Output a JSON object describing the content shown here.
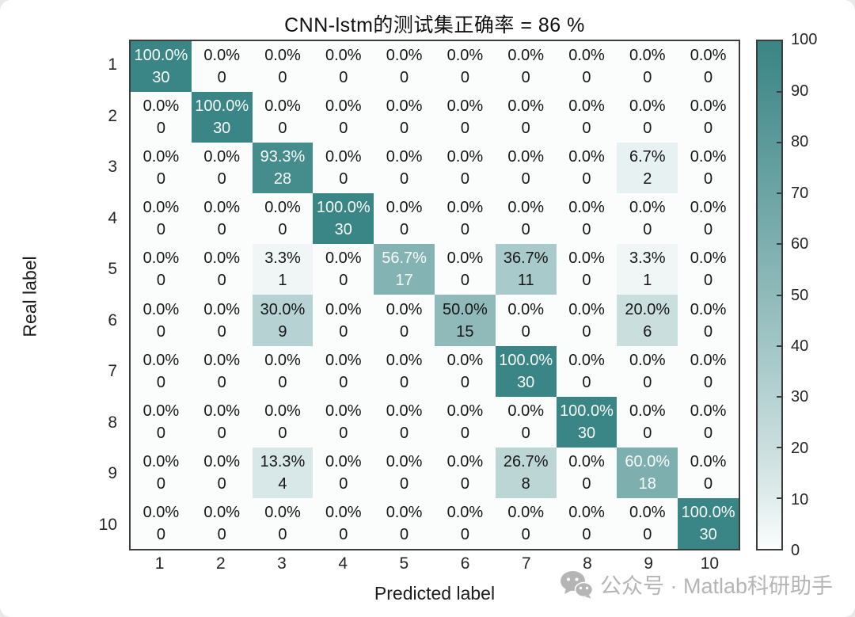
{
  "chart_data": {
    "type": "heatmap",
    "title": "CNN-lstm的测试集正确率 = 86 %",
    "accuracy_percent": 86,
    "xlabel": "Predicted label",
    "ylabel": "Real label",
    "x_tick_labels": [
      "1",
      "2",
      "3",
      "4",
      "5",
      "6",
      "7",
      "8",
      "9",
      "10"
    ],
    "y_tick_labels": [
      "1",
      "2",
      "3",
      "4",
      "5",
      "6",
      "7",
      "8",
      "9",
      "10"
    ],
    "row_total": 30,
    "grid": false,
    "legend_position": "right",
    "counts": [
      [
        30,
        0,
        0,
        0,
        0,
        0,
        0,
        0,
        0,
        0
      ],
      [
        0,
        30,
        0,
        0,
        0,
        0,
        0,
        0,
        0,
        0
      ],
      [
        0,
        0,
        28,
        0,
        0,
        0,
        0,
        0,
        2,
        0
      ],
      [
        0,
        0,
        0,
        30,
        0,
        0,
        0,
        0,
        0,
        0
      ],
      [
        0,
        0,
        1,
        0,
        17,
        0,
        11,
        0,
        1,
        0
      ],
      [
        0,
        0,
        9,
        0,
        0,
        15,
        0,
        0,
        6,
        0
      ],
      [
        0,
        0,
        0,
        0,
        0,
        0,
        30,
        0,
        0,
        0
      ],
      [
        0,
        0,
        0,
        0,
        0,
        0,
        0,
        30,
        0,
        0
      ],
      [
        0,
        0,
        4,
        0,
        0,
        0,
        8,
        0,
        18,
        0
      ],
      [
        0,
        0,
        0,
        0,
        0,
        0,
        0,
        0,
        0,
        30
      ]
    ],
    "percent_labels": [
      [
        "100.0%",
        "0.0%",
        "0.0%",
        "0.0%",
        "0.0%",
        "0.0%",
        "0.0%",
        "0.0%",
        "0.0%",
        "0.0%"
      ],
      [
        "0.0%",
        "100.0%",
        "0.0%",
        "0.0%",
        "0.0%",
        "0.0%",
        "0.0%",
        "0.0%",
        "0.0%",
        "0.0%"
      ],
      [
        "0.0%",
        "0.0%",
        "93.3%",
        "0.0%",
        "0.0%",
        "0.0%",
        "0.0%",
        "0.0%",
        "6.7%",
        "0.0%"
      ],
      [
        "0.0%",
        "0.0%",
        "0.0%",
        "100.0%",
        "0.0%",
        "0.0%",
        "0.0%",
        "0.0%",
        "0.0%",
        "0.0%"
      ],
      [
        "0.0%",
        "0.0%",
        "3.3%",
        "0.0%",
        "56.7%",
        "0.0%",
        "36.7%",
        "0.0%",
        "3.3%",
        "0.0%"
      ],
      [
        "0.0%",
        "0.0%",
        "30.0%",
        "0.0%",
        "0.0%",
        "50.0%",
        "0.0%",
        "0.0%",
        "20.0%",
        "0.0%"
      ],
      [
        "0.0%",
        "0.0%",
        "0.0%",
        "0.0%",
        "0.0%",
        "0.0%",
        "100.0%",
        "0.0%",
        "0.0%",
        "0.0%"
      ],
      [
        "0.0%",
        "0.0%",
        "0.0%",
        "0.0%",
        "0.0%",
        "0.0%",
        "0.0%",
        "100.0%",
        "0.0%",
        "0.0%"
      ],
      [
        "0.0%",
        "0.0%",
        "13.3%",
        "0.0%",
        "0.0%",
        "0.0%",
        "26.7%",
        "0.0%",
        "60.0%",
        "0.0%"
      ],
      [
        "0.0%",
        "0.0%",
        "0.0%",
        "0.0%",
        "0.0%",
        "0.0%",
        "0.0%",
        "0.0%",
        "0.0%",
        "100.0%"
      ]
    ],
    "colorbar": {
      "min": 0,
      "max": 100,
      "tick_values": [
        0,
        10,
        20,
        30,
        40,
        50,
        60,
        70,
        80,
        90,
        100
      ],
      "tick_labels": [
        "0",
        "10",
        "20",
        "30",
        "40",
        "50",
        "60",
        "70",
        "80",
        "90",
        "100"
      ],
      "color_low": "#fbfdfd",
      "color_high": "#3a8585"
    },
    "text_colors": {
      "dark": "#161616",
      "light": "#fafcfc"
    }
  },
  "watermark": {
    "icon": "wechat-icon",
    "text": "公众号 · Matlab科研助手",
    "color": "#b5b5b5"
  }
}
